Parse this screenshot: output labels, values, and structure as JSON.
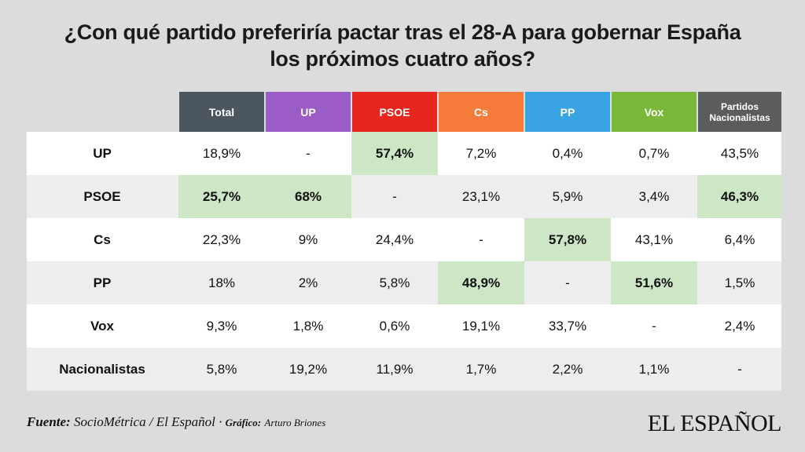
{
  "title_line1": "¿Con qué partido preferiría pactar tras el 28-A para gobernar España",
  "title_line2": "los próximos cuatro años?",
  "chart_data": {
    "type": "table",
    "title": "¿Con qué partido preferiría pactar tras el 28-A para gobernar España los próximos cuatro años?",
    "columns": [
      {
        "label": "Total",
        "color": "#4b565f"
      },
      {
        "label": "UP",
        "color": "#9b5cc6"
      },
      {
        "label": "PSOE",
        "color": "#e6261f"
      },
      {
        "label": "Cs",
        "color": "#f47b3a"
      },
      {
        "label": "PP",
        "color": "#3aa3e3"
      },
      {
        "label": "Vox",
        "color": "#7ab83a"
      },
      {
        "label": "Partidos Nacionalistas",
        "color": "#5a5c5e"
      }
    ],
    "rows": [
      {
        "label": "UP",
        "values": [
          "18,9%",
          "-",
          "57,4%",
          "7,2%",
          "0,4%",
          "0,7%",
          "43,5%"
        ],
        "highlight": [
          2
        ]
      },
      {
        "label": "PSOE",
        "values": [
          "25,7%",
          "68%",
          "-",
          "23,1%",
          "5,9%",
          "3,4%",
          "46,3%"
        ],
        "highlight": [
          0,
          1,
          6
        ]
      },
      {
        "label": "Cs",
        "values": [
          "22,3%",
          "9%",
          "24,4%",
          "-",
          "57,8%",
          "43,1%",
          "6,4%"
        ],
        "highlight": [
          4
        ]
      },
      {
        "label": "PP",
        "values": [
          "18%",
          "2%",
          "5,8%",
          "48,9%",
          "-",
          "51,6%",
          "1,5%"
        ],
        "highlight": [
          3,
          5
        ]
      },
      {
        "label": "Vox",
        "values": [
          "9,3%",
          "1,8%",
          "0,6%",
          "19,1%",
          "33,7%",
          "-",
          "2,4%"
        ],
        "highlight": []
      },
      {
        "label": "Nacionalistas",
        "values": [
          "5,8%",
          "19,2%",
          "11,9%",
          "1,7%",
          "2,2%",
          "1,1%",
          "-"
        ],
        "highlight": []
      }
    ],
    "highlight_color": "#cde6c6"
  },
  "footer": {
    "source_label": "Fuente:",
    "source_text": "SocioMétrica / El Español",
    "separator": "·",
    "graphic_label": "Gráfico:",
    "graphic_text": "Arturo Briones"
  },
  "logo": "EL ESPAÑOL"
}
